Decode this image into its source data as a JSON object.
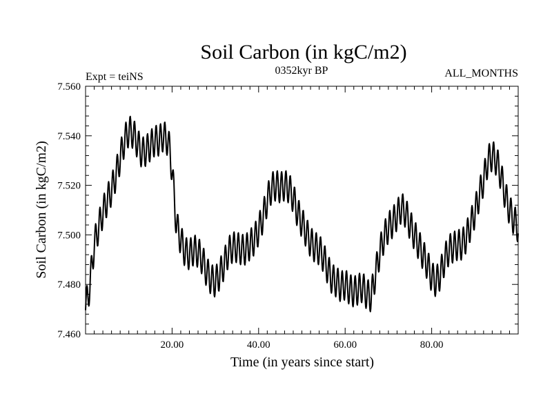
{
  "chart_data": {
    "type": "line",
    "title": "Soil Carbon (in kgC/m2)",
    "subtitle_left": "Expt = teiNS",
    "subtitle_center": "0352kyr BP",
    "subtitle_right": "ALL_MONTHS",
    "xlabel": "Time (in years since start)",
    "ylabel": "Soil Carbon (in kgC/m2)",
    "xlim": [
      0,
      100
    ],
    "ylim": [
      7.46,
      7.56
    ],
    "x_ticks": [
      {
        "value": 20,
        "label": "20.00"
      },
      {
        "value": 40,
        "label": "40.00"
      },
      {
        "value": 60,
        "label": "60.00"
      },
      {
        "value": 80,
        "label": "80.00"
      }
    ],
    "y_ticks": [
      {
        "value": 7.46,
        "label": "7.460"
      },
      {
        "value": 7.48,
        "label": "7.480"
      },
      {
        "value": 7.5,
        "label": "7.500"
      },
      {
        "value": 7.52,
        "label": "7.520"
      },
      {
        "value": 7.54,
        "label": "7.540"
      },
      {
        "value": 7.56,
        "label": "7.560"
      }
    ],
    "series": [
      {
        "name": "Soil Carbon",
        "color": "#000000",
        "seasonal_amplitude": 0.0062,
        "x": [
          0,
          0.5,
          1,
          1.5,
          2,
          3,
          4,
          5,
          6,
          7,
          8,
          9,
          10,
          11,
          12,
          13,
          14,
          15,
          16,
          17,
          18,
          19,
          19.5,
          20,
          20.5,
          21,
          22,
          23,
          24,
          25,
          26,
          27,
          28,
          29,
          30,
          31,
          32,
          33,
          34,
          35,
          36,
          37,
          38,
          39,
          40,
          41,
          42,
          43,
          44,
          45,
          46,
          47,
          48,
          49,
          50,
          51,
          52,
          53,
          54,
          55,
          56,
          57,
          58,
          59,
          60,
          61,
          62,
          63,
          64,
          65,
          66,
          67,
          68,
          69,
          70,
          71,
          72,
          73,
          74,
          75,
          76,
          77,
          78,
          79,
          80,
          81,
          82,
          83,
          84,
          85,
          86,
          87,
          88,
          89,
          90,
          91,
          92,
          93,
          94,
          95,
          96,
          97,
          98,
          99,
          100
        ],
        "y": [
          7.472,
          7.474,
          7.48,
          7.488,
          7.496,
          7.503,
          7.509,
          7.514,
          7.518,
          7.524,
          7.531,
          7.538,
          7.542,
          7.541,
          7.537,
          7.533,
          7.534,
          7.536,
          7.538,
          7.538,
          7.54,
          7.538,
          7.534,
          7.526,
          7.515,
          7.504,
          7.498,
          7.493,
          7.492,
          7.494,
          7.493,
          7.49,
          7.485,
          7.482,
          7.481,
          7.484,
          7.488,
          7.493,
          7.495,
          7.495,
          7.494,
          7.494,
          7.496,
          7.498,
          7.502,
          7.507,
          7.514,
          7.519,
          7.52,
          7.519,
          7.52,
          7.519,
          7.515,
          7.509,
          7.505,
          7.501,
          7.497,
          7.495,
          7.494,
          7.491,
          7.486,
          7.482,
          7.481,
          7.479,
          7.48,
          7.478,
          7.477,
          7.478,
          7.479,
          7.476,
          7.475,
          7.484,
          7.493,
          7.499,
          7.503,
          7.505,
          7.508,
          7.511,
          7.509,
          7.504,
          7.5,
          7.496,
          7.492,
          7.488,
          7.483,
          7.481,
          7.484,
          7.49,
          7.494,
          7.495,
          7.496,
          7.496,
          7.499,
          7.504,
          7.509,
          7.516,
          7.522,
          7.53,
          7.532,
          7.53,
          7.524,
          7.516,
          7.51,
          7.506,
          7.503
        ]
      }
    ]
  }
}
